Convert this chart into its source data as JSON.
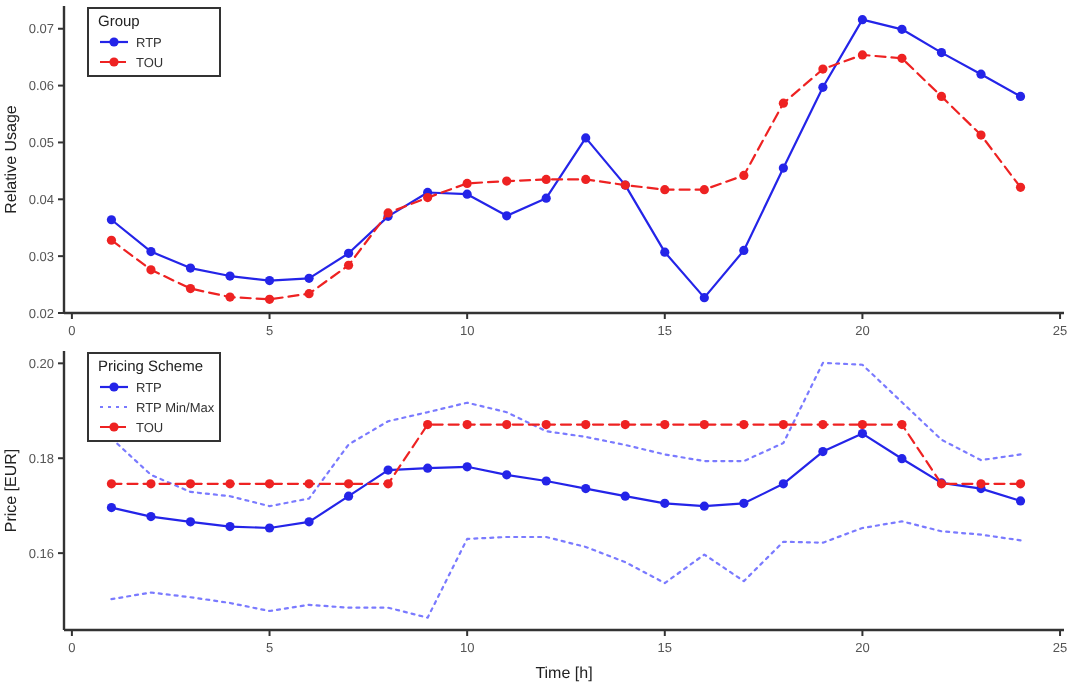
{
  "chart_data": [
    {
      "type": "line",
      "ylabel": "Relative Usage",
      "legend_title": "Group",
      "legend": "top left",
      "grid": false,
      "x": [
        1,
        2,
        3,
        4,
        5,
        6,
        7,
        8,
        9,
        10,
        11,
        12,
        13,
        14,
        15,
        16,
        17,
        18,
        19,
        20,
        21,
        22,
        23,
        24
      ],
      "xlim": [
        -0.2,
        25.1
      ],
      "xticks": [
        0,
        5,
        10,
        15,
        20,
        25
      ],
      "ylim": [
        0.02,
        0.074
      ],
      "yticks": [
        0.02,
        0.03,
        0.04,
        0.05,
        0.06,
        0.07
      ],
      "series": [
        {
          "name": "RTP",
          "color": "#2424e8",
          "line_style": "solid",
          "marker": "circle",
          "values": [
            0.0364,
            0.0308,
            0.0279,
            0.0265,
            0.0257,
            0.0261,
            0.0305,
            0.037,
            0.0412,
            0.0409,
            0.0371,
            0.0402,
            0.0508,
            0.0425,
            0.0307,
            0.0227,
            0.031,
            0.0455,
            0.0597,
            0.0716,
            0.0699,
            0.0658,
            0.062,
            0.0581
          ]
        },
        {
          "name": "TOU",
          "color": "#ee2222",
          "line_style": "dashed",
          "marker": "circle",
          "values": [
            0.0328,
            0.0276,
            0.0243,
            0.0228,
            0.0224,
            0.0234,
            0.0284,
            0.0376,
            0.0403,
            0.0428,
            0.0432,
            0.0435,
            0.0435,
            0.0425,
            0.0417,
            0.0417,
            0.0442,
            0.0569,
            0.0629,
            0.0654,
            0.0648,
            0.0581,
            0.0513,
            0.0421
          ]
        }
      ]
    },
    {
      "type": "line",
      "xlabel": "Time [h]",
      "ylabel": "Price [EUR]",
      "legend_title": "Pricing Scheme",
      "legend": "top left",
      "grid": false,
      "x": [
        1,
        2,
        3,
        4,
        5,
        6,
        7,
        8,
        9,
        10,
        11,
        12,
        13,
        14,
        15,
        16,
        17,
        18,
        19,
        20,
        21,
        22,
        23,
        24
      ],
      "xlim": [
        -0.2,
        25.1
      ],
      "xticks": [
        0,
        5,
        10,
        15,
        20,
        25
      ],
      "ylim": [
        0.1438,
        0.2026
      ],
      "yticks": [
        0.16,
        0.18,
        {
          "value": 0.2,
          "label": "0.20"
        }
      ],
      "series": [
        {
          "name": "RTP",
          "color": "#2424e8",
          "line_style": "solid",
          "marker": "circle",
          "values": [
            0.1696,
            0.1677,
            0.1666,
            0.1656,
            0.1653,
            0.1666,
            0.172,
            0.1775,
            0.1779,
            0.1782,
            0.1765,
            0.1752,
            0.1736,
            0.172,
            0.1705,
            0.1699,
            0.1705,
            0.1746,
            0.1814,
            0.1852,
            0.1799,
            0.1748,
            0.1736,
            0.171
          ]
        },
        {
          "name": "RTP Min/Max",
          "color": "#7a7aff",
          "line_style": "dotted",
          "marker": "none",
          "values": [
            0.1842,
            0.1765,
            0.1729,
            0.172,
            0.1699,
            0.1715,
            0.1829,
            0.1878,
            0.1897,
            0.1917,
            0.1897,
            0.1857,
            0.1845,
            0.1828,
            0.1808,
            0.1794,
            0.1794,
            0.1832,
            0.2001,
            0.1997,
            0.1918,
            0.1839,
            0.1796,
            0.1808
          ]
        },
        {
          "color": "#7a7aff",
          "line_style": "dotted",
          "marker": "none",
          "values": [
            0.1503,
            0.1517,
            0.1507,
            0.1495,
            0.1478,
            0.1491,
            0.1485,
            0.1485,
            0.1464,
            0.163,
            0.1634,
            0.1634,
            0.1613,
            0.1581,
            0.1537,
            0.1597,
            0.1541,
            0.1624,
            0.1622,
            0.1653,
            0.1667,
            0.1646,
            0.1639,
            0.1627
          ]
        },
        {
          "name": "TOU",
          "color": "#ee2222",
          "line_style": "dashed",
          "marker": "circle",
          "values": [
            0.1746,
            0.1746,
            0.1746,
            0.1746,
            0.1746,
            0.1746,
            0.1746,
            0.1746,
            0.1871,
            0.1871,
            0.1871,
            0.1871,
            0.1871,
            0.1871,
            0.1871,
            0.1871,
            0.1871,
            0.1871,
            0.1871,
            0.1871,
            0.1871,
            0.1746,
            0.1746,
            0.1746
          ]
        }
      ]
    }
  ]
}
